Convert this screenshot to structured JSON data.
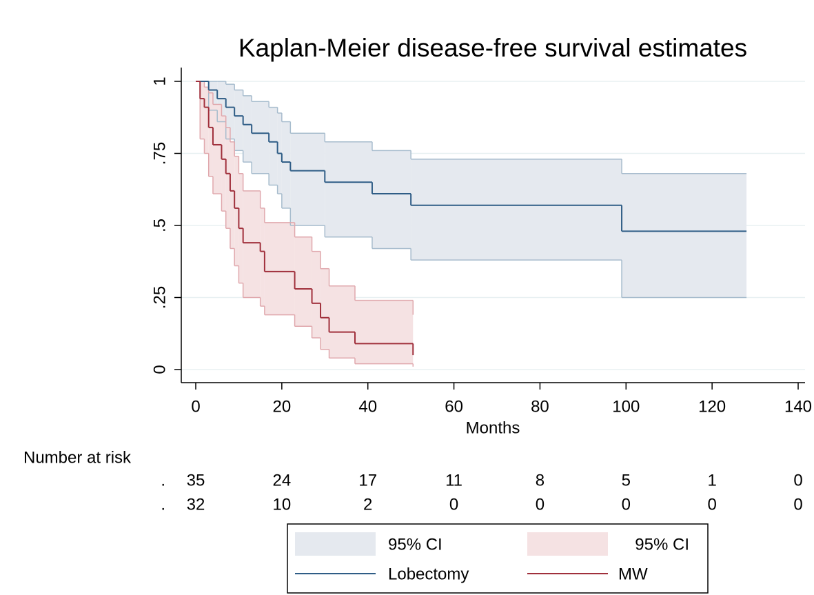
{
  "chart_data": {
    "type": "kaplan-meier",
    "title": "Kaplan-Meier disease-free survival estimates",
    "x_label": "Months",
    "xlim": [
      0,
      140
    ],
    "xticks": [
      0,
      20,
      40,
      60,
      80,
      100,
      120,
      140
    ],
    "ylim": [
      0,
      1
    ],
    "yticks": [
      0,
      {
        "value": 0.25,
        "label": ".25"
      },
      {
        "value": 0.5,
        "label": ".5"
      },
      {
        "value": 0.75,
        "label": ".75"
      },
      1
    ],
    "grid": true,
    "series": [
      {
        "name": "Lobectomy",
        "color": "#2f5d86",
        "ci_label": "95% CI",
        "ci_color": "#e5e9ef",
        "ci_edge_color": "#a7bccd",
        "x": [
          0,
          3,
          5,
          7,
          9,
          11,
          13,
          17,
          19,
          20,
          22,
          30,
          41,
          50,
          99,
          128
        ],
        "values": [
          1,
          0.97,
          0.94,
          0.91,
          0.88,
          0.85,
          0.82,
          0.79,
          0.75,
          0.72,
          0.69,
          0.65,
          0.61,
          0.57,
          0.48,
          0.48
        ],
        "ci_lower": [
          1,
          0.9,
          0.86,
          0.8,
          0.76,
          0.72,
          0.68,
          0.64,
          0.61,
          0.56,
          0.5,
          0.46,
          0.42,
          0.38,
          0.25,
          0.25
        ],
        "ci_upper": [
          1,
          1,
          1,
          0.99,
          0.97,
          0.95,
          0.93,
          0.91,
          0.89,
          0.86,
          0.82,
          0.79,
          0.76,
          0.73,
          0.68,
          0.68
        ]
      },
      {
        "name": "MW",
        "color": "#a0303c",
        "ci_label": "95% CI",
        "ci_color": "#f5e2e3",
        "ci_edge_color": "#e0a8ad",
        "x": [
          0,
          1,
          2,
          3,
          4,
          6,
          7,
          8,
          9,
          10,
          11,
          15,
          16,
          23,
          27,
          29,
          31,
          37,
          50.5
        ],
        "values": [
          1,
          0.94,
          0.91,
          0.84,
          0.78,
          0.73,
          0.68,
          0.62,
          0.56,
          0.49,
          0.44,
          0.41,
          0.34,
          0.28,
          0.23,
          0.18,
          0.13,
          0.09,
          0.05
        ],
        "ci_lower": [
          1,
          0.8,
          0.75,
          0.67,
          0.61,
          0.55,
          0.49,
          0.42,
          0.36,
          0.3,
          0.25,
          0.22,
          0.19,
          0.15,
          0.11,
          0.07,
          0.04,
          0.02,
          0.01
        ],
        "ci_upper": [
          1,
          1,
          0.98,
          0.96,
          0.92,
          0.88,
          0.84,
          0.79,
          0.74,
          0.68,
          0.62,
          0.56,
          0.51,
          0.46,
          0.41,
          0.35,
          0.29,
          0.24,
          0.19
        ]
      }
    ],
    "risk_table": {
      "title": "Number at risk",
      "rows": [
        {
          "label": ".",
          "values": [
            35,
            24,
            17,
            11,
            8,
            5,
            1,
            0
          ]
        },
        {
          "label": ".",
          "values": [
            32,
            10,
            2,
            0,
            0,
            0,
            0,
            0
          ]
        }
      ]
    }
  }
}
